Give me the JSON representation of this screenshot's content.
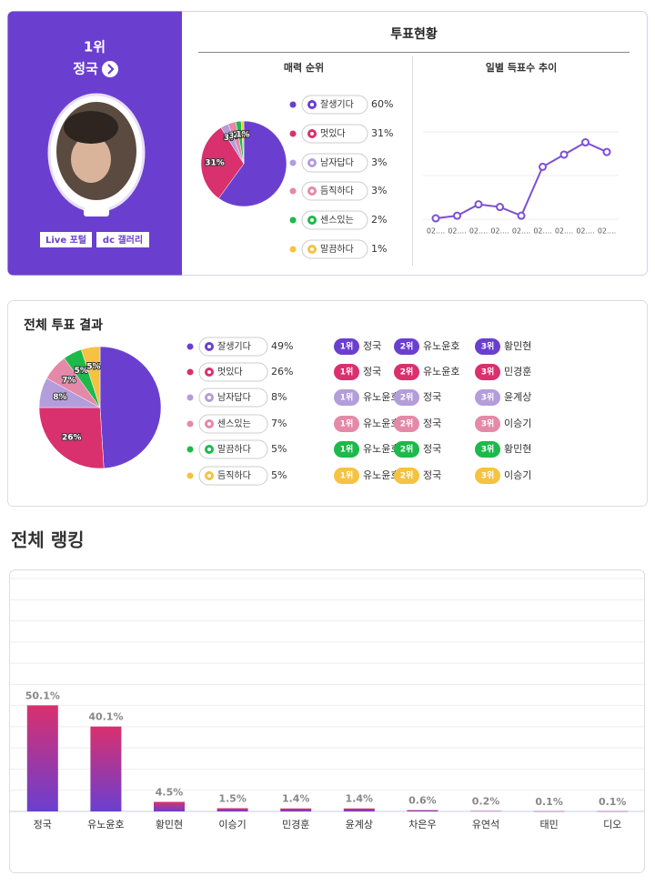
{
  "profile": {
    "rank": "1위",
    "name": "정국",
    "buttons": [
      "Live 포털",
      "dc 갤러리"
    ]
  },
  "vote_status": {
    "title": "투표현황"
  },
  "vote_results": {
    "rankings": [
      [
        {
          "rank": "1위",
          "name": "정국"
        },
        {
          "rank": "2위",
          "name": "유노윤호"
        },
        {
          "rank": "3위",
          "name": "황민현"
        }
      ],
      [
        {
          "rank": "1위",
          "name": "정국"
        },
        {
          "rank": "2위",
          "name": "유노윤호"
        },
        {
          "rank": "3위",
          "name": "민경훈"
        }
      ],
      [
        {
          "rank": "1위",
          "name": "유노윤호"
        },
        {
          "rank": "2위",
          "name": "정국"
        },
        {
          "rank": "3위",
          "name": "윤계상"
        }
      ],
      [
        {
          "rank": "1위",
          "name": "유노윤호"
        },
        {
          "rank": "2위",
          "name": "정국"
        },
        {
          "rank": "3위",
          "name": "이승기"
        }
      ],
      [
        {
          "rank": "1위",
          "name": "유노윤호"
        },
        {
          "rank": "2위",
          "name": "정국"
        },
        {
          "rank": "3위",
          "name": "황민현"
        }
      ],
      [
        {
          "rank": "1위",
          "name": "유노윤호"
        },
        {
          "rank": "2위",
          "name": "정국"
        },
        {
          "rank": "3위",
          "name": "이승기"
        }
      ]
    ]
  },
  "chart_data": [
    {
      "type": "pie",
      "title": "매력 순위",
      "categories": [
        "잘생기다",
        "멋있다",
        "남자답다",
        "듬직하다",
        "센스있는",
        "말끔하다"
      ],
      "values": [
        60,
        31,
        3,
        3,
        2,
        1
      ],
      "value_labels": [
        "60%",
        "31%",
        "3%",
        "3%",
        "2%",
        "1%"
      ],
      "colors": [
        "#6a3fd0",
        "#d9306e",
        "#b39ddb",
        "#e589a8",
        "#1db94a",
        "#f5c242"
      ]
    },
    {
      "type": "line",
      "title": "일별 득표수 추이",
      "categories": [
        "02....",
        "02....",
        "02....",
        "02....",
        "02....",
        "02....",
        "02....",
        "02....",
        "02...."
      ],
      "values": [
        1,
        4,
        17,
        14,
        4,
        60,
        74,
        88,
        77
      ],
      "ylim": [
        0,
        100
      ],
      "color": "#7b4fd6"
    },
    {
      "type": "pie",
      "title": "전체 투표 결과",
      "categories": [
        "잘생기다",
        "멋있다",
        "남자답다",
        "센스있는",
        "말끔하다",
        "듬직하다"
      ],
      "values": [
        49,
        26,
        8,
        7,
        5,
        5
      ],
      "value_labels": [
        "49%",
        "26%",
        "8%",
        "7%",
        "5%",
        "5%"
      ],
      "colors": [
        "#6a3fd0",
        "#d9306e",
        "#b39ddb",
        "#e589a8",
        "#1db94a",
        "#f5c242"
      ]
    },
    {
      "type": "bar",
      "title": "전체 랭킹",
      "categories": [
        "정국",
        "유노윤호",
        "황민현",
        "이승기",
        "민경훈",
        "윤계상",
        "차은우",
        "유연석",
        "태민",
        "디오"
      ],
      "values": [
        50.1,
        40.1,
        4.5,
        1.5,
        1.4,
        1.4,
        0.6,
        0.2,
        0.1,
        0.1
      ],
      "value_labels": [
        "50.1%",
        "40.1%",
        "4.5%",
        "1.5%",
        "1.4%",
        "1.4%",
        "0.6%",
        "0.2%",
        "0.1%",
        "0.1%"
      ],
      "ylim": [
        0,
        110
      ]
    }
  ]
}
